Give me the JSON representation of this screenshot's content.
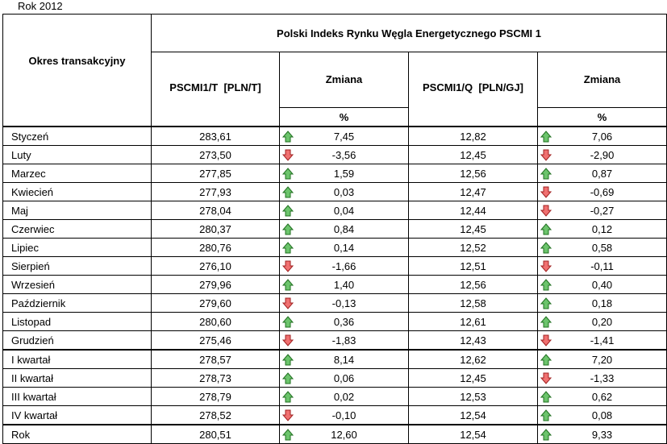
{
  "caption": "Rok 2012",
  "header": {
    "period": "Okres transakcyjny",
    "title": "Polski Indeks Rynku Węgla Energetycznego PSCMI 1",
    "col_t": "PSCMI1/T  [PLN/T]",
    "col_t_change": "Zmiana",
    "col_t_unit": "%",
    "col_q": "PSCMI1/Q  [PLN/GJ]",
    "col_q_change": "Zmiana",
    "col_q_unit": "%"
  },
  "table": {
    "rows": [
      [
        "Styczeń",
        "283,61",
        "7,45",
        "12,82",
        "7,06"
      ],
      [
        "Luty",
        "273,50",
        "-3,56",
        "12,45",
        "-2,90"
      ],
      [
        "Marzec",
        "277,85",
        "1,59",
        "12,56",
        "0,87"
      ],
      [
        "Kwiecień",
        "277,93",
        "0,03",
        "12,47",
        "-0,69"
      ],
      [
        "Maj",
        "278,04",
        "0,04",
        "12,44",
        "-0,27"
      ],
      [
        "Czerwiec",
        "280,37",
        "0,84",
        "12,45",
        "0,12"
      ],
      [
        "Lipiec",
        "280,76",
        "0,14",
        "12,52",
        "0,58"
      ],
      [
        "Sierpień",
        "276,10",
        "-1,66",
        "12,51",
        "-0,11"
      ],
      [
        "Wrzesień",
        "279,96",
        "1,40",
        "12,56",
        "0,40"
      ],
      [
        "Październik",
        "279,60",
        "-0,13",
        "12,58",
        "0,18"
      ],
      [
        "Listopad",
        "280,60",
        "0,36",
        "12,61",
        "0,20"
      ],
      [
        "Grudzień",
        "275,46",
        "-1,83",
        "12,43",
        "-1,41"
      ],
      [
        "I kwartał",
        "278,57",
        "8,14",
        "12,62",
        "7,20"
      ],
      [
        "II kwartał",
        "278,73",
        "0,06",
        "12,45",
        "-1,33"
      ],
      [
        "III kwartał",
        "278,79",
        "0,02",
        "12,53",
        "0,62"
      ],
      [
        "IV kwartał",
        "278,52",
        "-0,10",
        "12,54",
        "0,08"
      ],
      [
        "Rok",
        "280,51",
        "12,60",
        "12,54",
        "9,33"
      ]
    ]
  }
}
